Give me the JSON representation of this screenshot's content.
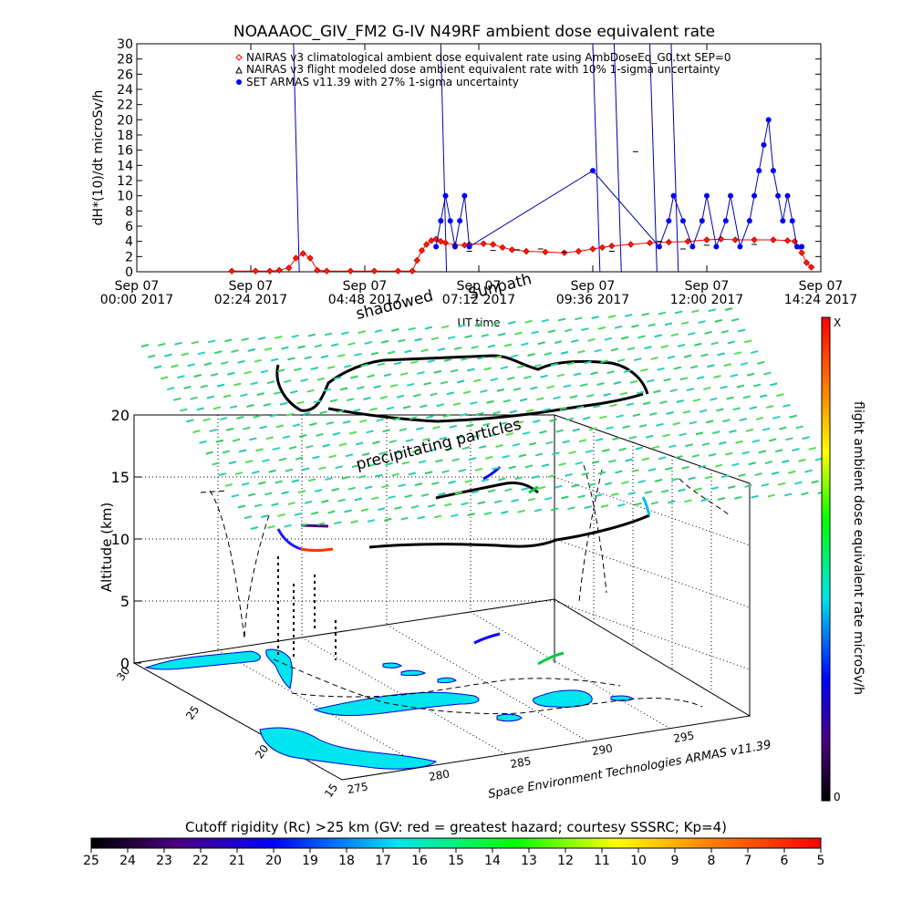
{
  "title": "NOAAAOC_GIV_FM2 G-IV    N49RF  ambient dose equivalent rate",
  "chart_data": [
    {
      "type": "scatter",
      "ylabel": "dH*(10)/dt microSv/h",
      "xlabel": "UT time",
      "ylim": [
        0,
        30
      ],
      "xlim": [
        "Sep 07 2017 00:00",
        "Sep 07 2017 14:24"
      ],
      "yticks": [
        "0",
        "2",
        "4",
        "6",
        "8",
        "10",
        "12",
        "14",
        "16",
        "18",
        "20",
        "22",
        "24",
        "26",
        "28",
        "30"
      ],
      "xticks": [
        {
          "l1": "Sep 07",
          "l2": "00:00 2017"
        },
        {
          "l1": "Sep 07",
          "l2": "02:24 2017"
        },
        {
          "l1": "Sep 07",
          "l2": "04:48 2017"
        },
        {
          "l1": "Sep 07",
          "l2": "07:12 2017"
        },
        {
          "l1": "Sep 07",
          "l2": "09:36 2017"
        },
        {
          "l1": "Sep 07",
          "l2": "12:00 2017"
        },
        {
          "l1": "Sep 07",
          "l2": "14:24 2017"
        }
      ],
      "legend_position": "top",
      "legend": [
        {
          "symbol": "diamond",
          "color": "#ff0000",
          "label": "NAIRAS v3 climatological ambient dose equivalent rate using AmbDoseEq_G0.txt SEP=0"
        },
        {
          "symbol": "triangle",
          "color": "#000000",
          "label": "NAIRAS v3 flight modeled dose ambient equivalent rate with 10% 1-sigma uncertainty"
        },
        {
          "symbol": "dot",
          "color": "#0000ff",
          "label": "SET ARMAS v11.39 with 27% 1-sigma uncertainty"
        }
      ],
      "series": [
        {
          "name": "NAIRAS v3 climatological ambient dose equivalent rate using AmbDoseEq_G0.txt SEP=0",
          "color": "#ff0000",
          "x": [
            2.0,
            2.5,
            2.8,
            3.0,
            3.2,
            3.35,
            3.5,
            3.65,
            3.8,
            4.0,
            4.5,
            5.0,
            5.5,
            5.8,
            5.9,
            6.0,
            6.1,
            6.2,
            6.3,
            6.4,
            6.5,
            6.7,
            6.9,
            7.0,
            7.3,
            7.5,
            7.7,
            7.9,
            8.2,
            8.6,
            9.0,
            9.3,
            9.6,
            9.8,
            10.0,
            10.4,
            10.8,
            11.2,
            11.6,
            12.0,
            12.3,
            12.6,
            13.0,
            13.4,
            13.7,
            13.85,
            14.0,
            14.1,
            14.2
          ],
          "y": [
            0.1,
            0.1,
            0.1,
            0.2,
            0.5,
            1.8,
            2.4,
            1.8,
            0.2,
            0.1,
            0.1,
            0.1,
            0.1,
            0.1,
            1.5,
            2.8,
            3.6,
            4.1,
            4.3,
            4.0,
            3.8,
            3.5,
            3.5,
            3.6,
            3.7,
            3.6,
            3.2,
            2.9,
            2.7,
            2.6,
            2.5,
            2.7,
            3.0,
            3.2,
            3.4,
            3.6,
            3.8,
            3.9,
            4.0,
            4.2,
            4.3,
            4.2,
            4.2,
            4.2,
            4.1,
            4.0,
            2.5,
            1.2,
            0.6
          ]
        },
        {
          "name": "NAIRAS v3 flight modeled dose ambient equivalent rate with 10% 1-sigma uncertainty",
          "color": "#000000",
          "x": [
            7.0,
            7.5,
            8.0,
            8.5,
            9.0,
            10.0,
            10.5,
            11.0,
            11.5,
            12.0,
            13.0
          ],
          "y": [
            2.7,
            2.8,
            2.9,
            3.0,
            2.6,
            2.7,
            15.8,
            4.0,
            3.0,
            3.5,
            3.6
          ]
        },
        {
          "name": "SET ARMAS v11.39 with 27% 1-sigma uncertainty",
          "color": "#0000ff",
          "x": [
            6.3,
            6.4,
            6.5,
            6.6,
            6.7,
            6.8,
            6.9,
            7.0,
            9.6,
            11.0,
            11.2,
            11.3,
            11.5,
            11.7,
            11.9,
            12.0,
            12.2,
            12.4,
            12.5,
            12.7,
            12.9,
            13.0,
            13.1,
            13.2,
            13.3,
            13.4,
            13.5,
            13.6,
            13.7,
            13.8,
            13.9,
            14.0
          ],
          "y": [
            3.3,
            6.7,
            10.0,
            6.7,
            3.3,
            6.7,
            10.0,
            3.3,
            13.3,
            3.3,
            6.7,
            10.0,
            6.7,
            3.3,
            6.7,
            10.0,
            3.3,
            6.7,
            10.0,
            3.3,
            6.7,
            10.0,
            13.3,
            16.7,
            20.0,
            13.3,
            10.0,
            6.7,
            10.0,
            6.7,
            3.3,
            3.3
          ]
        }
      ]
    },
    {
      "type": "3d-trajectory",
      "zlabel": "Altitude (km)",
      "zticks": [
        "0",
        "5",
        "10",
        "15",
        "20"
      ],
      "lat_ticks": [
        "30",
        "25",
        "20",
        "15"
      ],
      "lon_ticks": [
        "275",
        "280",
        "285",
        "290",
        "295"
      ],
      "annotations": [
        "shadowed",
        "Sunpath",
        "precipitating particles",
        "Space Environment Technologies ARMAS v11.39"
      ],
      "colorbar": {
        "label": "flight ambient dose equivalent rate microSv/h",
        "top": "X",
        "bottom": "0"
      }
    }
  ],
  "bottom_colorbar": {
    "title": "Cutoff rigidity (Rc) >25 km (GV: red = greatest hazard; courtesy SSSRC; Kp=4)",
    "ticks": [
      "25",
      "24",
      "23",
      "22",
      "21",
      "20",
      "19",
      "18",
      "17",
      "16",
      "15",
      "14",
      "13",
      "12",
      "11",
      "10",
      "9",
      "8",
      "7",
      "6",
      "5"
    ]
  }
}
